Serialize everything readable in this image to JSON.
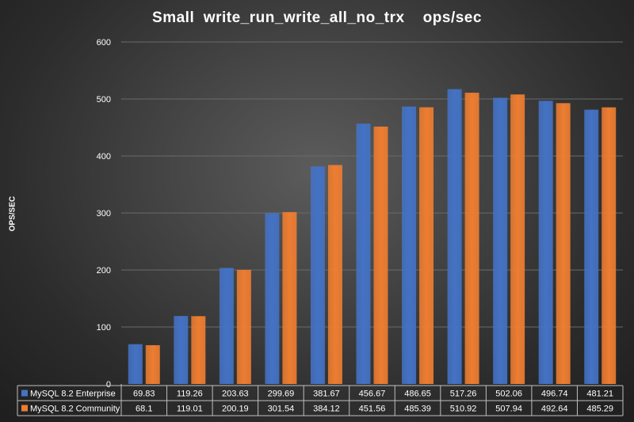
{
  "chart_data": {
    "type": "bar",
    "title": "Small  write_run_write_all_no_trx    ops/sec",
    "ylabel": "OPS/SEC",
    "xlabel": "",
    "ylim": [
      0,
      600
    ],
    "yticks": [
      0,
      100,
      200,
      300,
      400,
      500,
      600
    ],
    "grid": true,
    "legend": "data-table",
    "categories": [
      "",
      "",
      "",
      "",
      "",
      "",
      "",
      "",
      "",
      "",
      ""
    ],
    "series": [
      {
        "name": "MySQL 8.2 Enterprise",
        "color": "#4472C4",
        "values": [
          69.83,
          119.26,
          203.63,
          299.69,
          381.67,
          456.67,
          486.65,
          517.26,
          502.06,
          496.74,
          481.21
        ]
      },
      {
        "name": "MySQL 8.2 Community",
        "color": "#ED7D31",
        "values": [
          68.1,
          119.01,
          200.19,
          301.54,
          384.12,
          451.56,
          485.39,
          510.92,
          507.94,
          492.64,
          485.29
        ]
      }
    ],
    "table_values": [
      [
        "69.83",
        "119.26",
        "203.63",
        "299.69",
        "381.67",
        "456.67",
        "486.65",
        "517.26",
        "502.06",
        "496.74",
        "481.21"
      ],
      [
        "68.1",
        "119.01",
        "200.19",
        "301.54",
        "384.12",
        "451.56",
        "485.39",
        "510.92",
        "507.94",
        "492.64",
        "485.29"
      ]
    ]
  }
}
